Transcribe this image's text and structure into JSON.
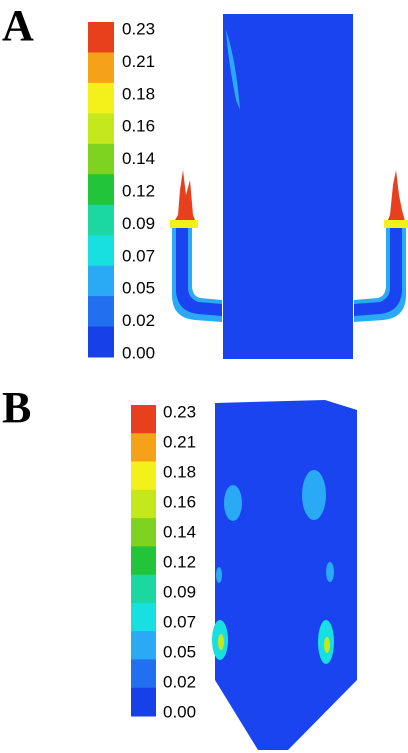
{
  "panels": [
    {
      "label": "A",
      "colorbar": {
        "ticks": [
          "0.23",
          "0.21",
          "0.18",
          "0.16",
          "0.14",
          "0.12",
          "0.09",
          "0.07",
          "0.05",
          "0.02",
          "0.00"
        ],
        "colors": [
          "#e8401c",
          "#f5a21a",
          "#f3f01a",
          "#c4e81c",
          "#7ed321",
          "#22c43a",
          "#1ad8a0",
          "#18e0e0",
          "#2aaaf5",
          "#2070f0",
          "#1840e8"
        ]
      }
    },
    {
      "label": "B",
      "colorbar": {
        "ticks": [
          "0.23",
          "0.21",
          "0.18",
          "0.16",
          "0.14",
          "0.12",
          "0.09",
          "0.07",
          "0.05",
          "0.02",
          "0.00"
        ],
        "colors": [
          "#e8401c",
          "#f5a21a",
          "#f3f01a",
          "#c4e81c",
          "#7ed321",
          "#22c43a",
          "#1ad8a0",
          "#18e0e0",
          "#2aaaf5",
          "#2070f0",
          "#1840e8"
        ]
      }
    }
  ]
}
